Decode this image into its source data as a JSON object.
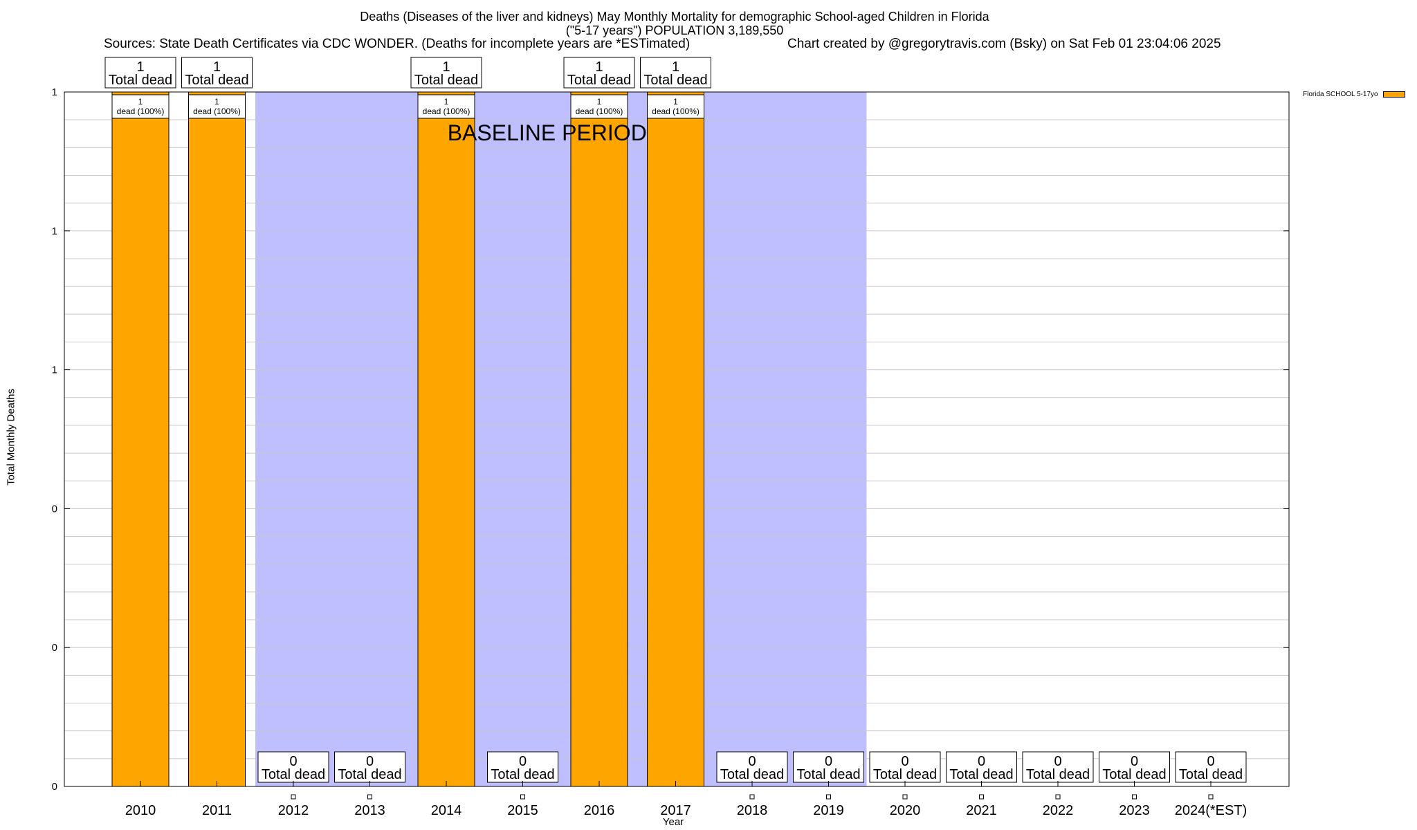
{
  "title": {
    "line1": "Deaths (Diseases of the liver and kidneys) May Monthly Mortality for demographic School-aged Children in Florida",
    "line2": "(\"5-17 years\") POPULATION 3,189,550"
  },
  "sources": "Sources: State Death Certificates via CDC WONDER. (Deaths for incomplete years are *ESTimated)",
  "credit": "Chart created by @gregorytravis.com (Bsky) on Sat Feb 01 23:04:06 2025",
  "legend_label": "Florida SCHOOL 5-17yo",
  "colors": {
    "bar": "#FFA500",
    "baseline_shade": "#BFBFFF",
    "grid": "#C8C8C8"
  },
  "chart_data": {
    "type": "bar",
    "title": "Deaths (Diseases of the liver and kidneys) May Monthly Mortality for demographic School-aged Children in Florida",
    "xlabel": "Year",
    "ylabel": "Total Monthly Deaths",
    "categories": [
      "2010",
      "2011",
      "2012",
      "2013",
      "2014",
      "2015",
      "2016",
      "2017",
      "2018",
      "2019",
      "2020",
      "2021",
      "2022",
      "2023",
      "2024(*EST)"
    ],
    "series": [
      {
        "name": "Florida SCHOOL 5-17yo",
        "values": [
          1,
          1,
          0,
          0,
          1,
          0,
          1,
          1,
          0,
          0,
          0,
          0,
          0,
          0,
          0
        ]
      }
    ],
    "ylim": [
      0,
      1
    ],
    "y_tick_labels": [
      "0",
      "0",
      "0",
      "1",
      "1",
      "1"
    ],
    "total_label": "Total dead",
    "bar_label_suffix": "dead (100%)",
    "baseline": {
      "label": "BASELINE PERIOD",
      "from": "2012",
      "to": "2019"
    },
    "legend_position": "top-right",
    "grid": true
  }
}
